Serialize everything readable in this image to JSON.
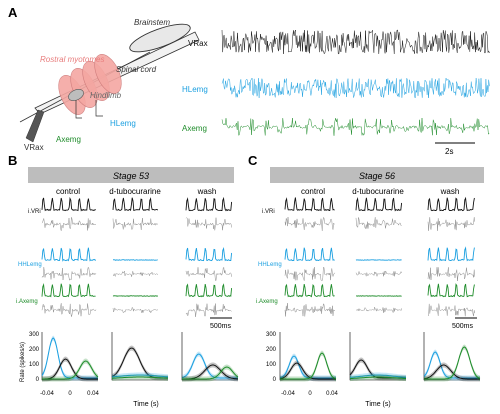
{
  "panels": {
    "A": "A",
    "B": "B",
    "C": "C"
  },
  "schematic": {
    "brainstem": "Brainstem",
    "rostral_myotomes": "Rostral myotomes",
    "spinal_cord": "Spinal cord",
    "hindlimb": "Hindlimb",
    "vrax": "VRax",
    "hlemg": "HLemg",
    "axemg": "Axemg"
  },
  "traces_A": {
    "vrax": "VRax",
    "hlemg": "HLemg",
    "axemg": "Axemg",
    "scale": "2s"
  },
  "stage53": {
    "title": "Stage 53",
    "conditions": [
      "control",
      "d-tubocurarine",
      "wash"
    ],
    "rows": [
      "i.VRi",
      "HHLemg",
      "i.Axemg"
    ],
    "scale": "500ms",
    "yticks": [
      "300",
      "200",
      "100",
      "0"
    ],
    "ylabel": "Rate (spikes/s)",
    "xticks": [
      "-0.04",
      "0",
      "0.04"
    ],
    "xlabel": "Time (s)"
  },
  "stage56": {
    "title": "Stage 56",
    "conditions": [
      "control",
      "d-tubocurarine",
      "wash"
    ],
    "rows": [
      "i.VRi",
      "HHLemg",
      "i.Axemg"
    ],
    "scale": "500ms",
    "yticks": [
      "300",
      "200",
      "100",
      "0"
    ],
    "xticks": [
      "-0.04",
      "0",
      "0.04"
    ],
    "xlabel": "Time (s)"
  },
  "colors": {
    "vr": "#111111",
    "hl": "#1a9fe0",
    "ax": "#1e8c2a",
    "raw": "#8c8c8c",
    "myotome": "#f4a7a2"
  }
}
